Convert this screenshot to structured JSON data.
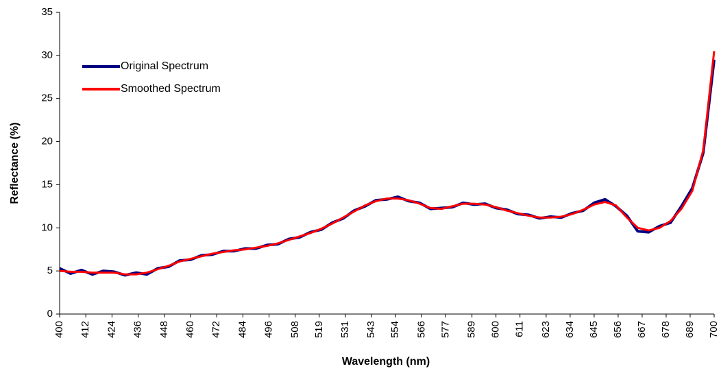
{
  "chart_data": {
    "type": "line",
    "xlabel": "Wavelength (nm)",
    "ylabel": "Reflectance (%)",
    "x": [
      400,
      405,
      410,
      415,
      420,
      425,
      430,
      435,
      440,
      445,
      450,
      455,
      460,
      465,
      470,
      475,
      480,
      485,
      490,
      495,
      500,
      505,
      510,
      515,
      520,
      525,
      530,
      535,
      540,
      545,
      550,
      555,
      560,
      565,
      570,
      575,
      580,
      585,
      590,
      595,
      600,
      605,
      610,
      615,
      620,
      625,
      630,
      635,
      640,
      645,
      650,
      655,
      660,
      665,
      670,
      675,
      680,
      685,
      690,
      695,
      700
    ],
    "series": [
      {
        "name": "Original Spectrum",
        "color": "#000080",
        "values": [
          5.3,
          4.7,
          5.1,
          4.6,
          5.0,
          4.9,
          4.5,
          4.8,
          4.6,
          5.3,
          5.5,
          6.2,
          6.3,
          6.8,
          6.9,
          7.3,
          7.3,
          7.6,
          7.6,
          8.0,
          8.1,
          8.7,
          8.9,
          9.5,
          9.8,
          10.6,
          11.1,
          12.0,
          12.5,
          13.2,
          13.3,
          13.6,
          13.1,
          12.9,
          12.2,
          12.3,
          12.4,
          12.9,
          12.7,
          12.8,
          12.3,
          12.1,
          11.6,
          11.5,
          11.1,
          11.3,
          11.2,
          11.7,
          12.0,
          12.9,
          13.3,
          12.5,
          11.4,
          9.6,
          9.5,
          10.2,
          10.6,
          12.5,
          14.6,
          18.7,
          29.5
        ]
      },
      {
        "name": "Smoothed Spectrum",
        "color": "#ff0000",
        "values": [
          5.0,
          4.9,
          4.9,
          4.8,
          4.8,
          4.8,
          4.6,
          4.6,
          4.8,
          5.2,
          5.6,
          6.1,
          6.4,
          6.7,
          7.0,
          7.2,
          7.4,
          7.5,
          7.7,
          7.9,
          8.2,
          8.6,
          9.0,
          9.4,
          9.9,
          10.5,
          11.2,
          11.9,
          12.6,
          13.1,
          13.4,
          13.4,
          13.2,
          12.8,
          12.3,
          12.2,
          12.5,
          12.8,
          12.8,
          12.7,
          12.4,
          12.0,
          11.7,
          11.4,
          11.2,
          11.2,
          11.3,
          11.6,
          12.1,
          12.7,
          13.0,
          12.6,
          11.2,
          10.0,
          9.7,
          10.0,
          10.8,
          12.2,
          14.3,
          19.0,
          30.5
        ]
      }
    ],
    "xlim": [
      400,
      700
    ],
    "xticks": [
      400,
      412,
      424,
      436,
      448,
      460,
      472,
      484,
      496,
      508,
      519,
      531,
      543,
      554,
      566,
      577,
      589,
      600,
      611,
      623,
      634,
      645,
      656,
      667,
      678,
      689,
      700
    ],
    "ylim": [
      0,
      35
    ],
    "yticks": [
      0,
      5,
      10,
      15,
      20,
      25,
      30,
      35
    ],
    "grid": false,
    "legend": "upper left"
  }
}
